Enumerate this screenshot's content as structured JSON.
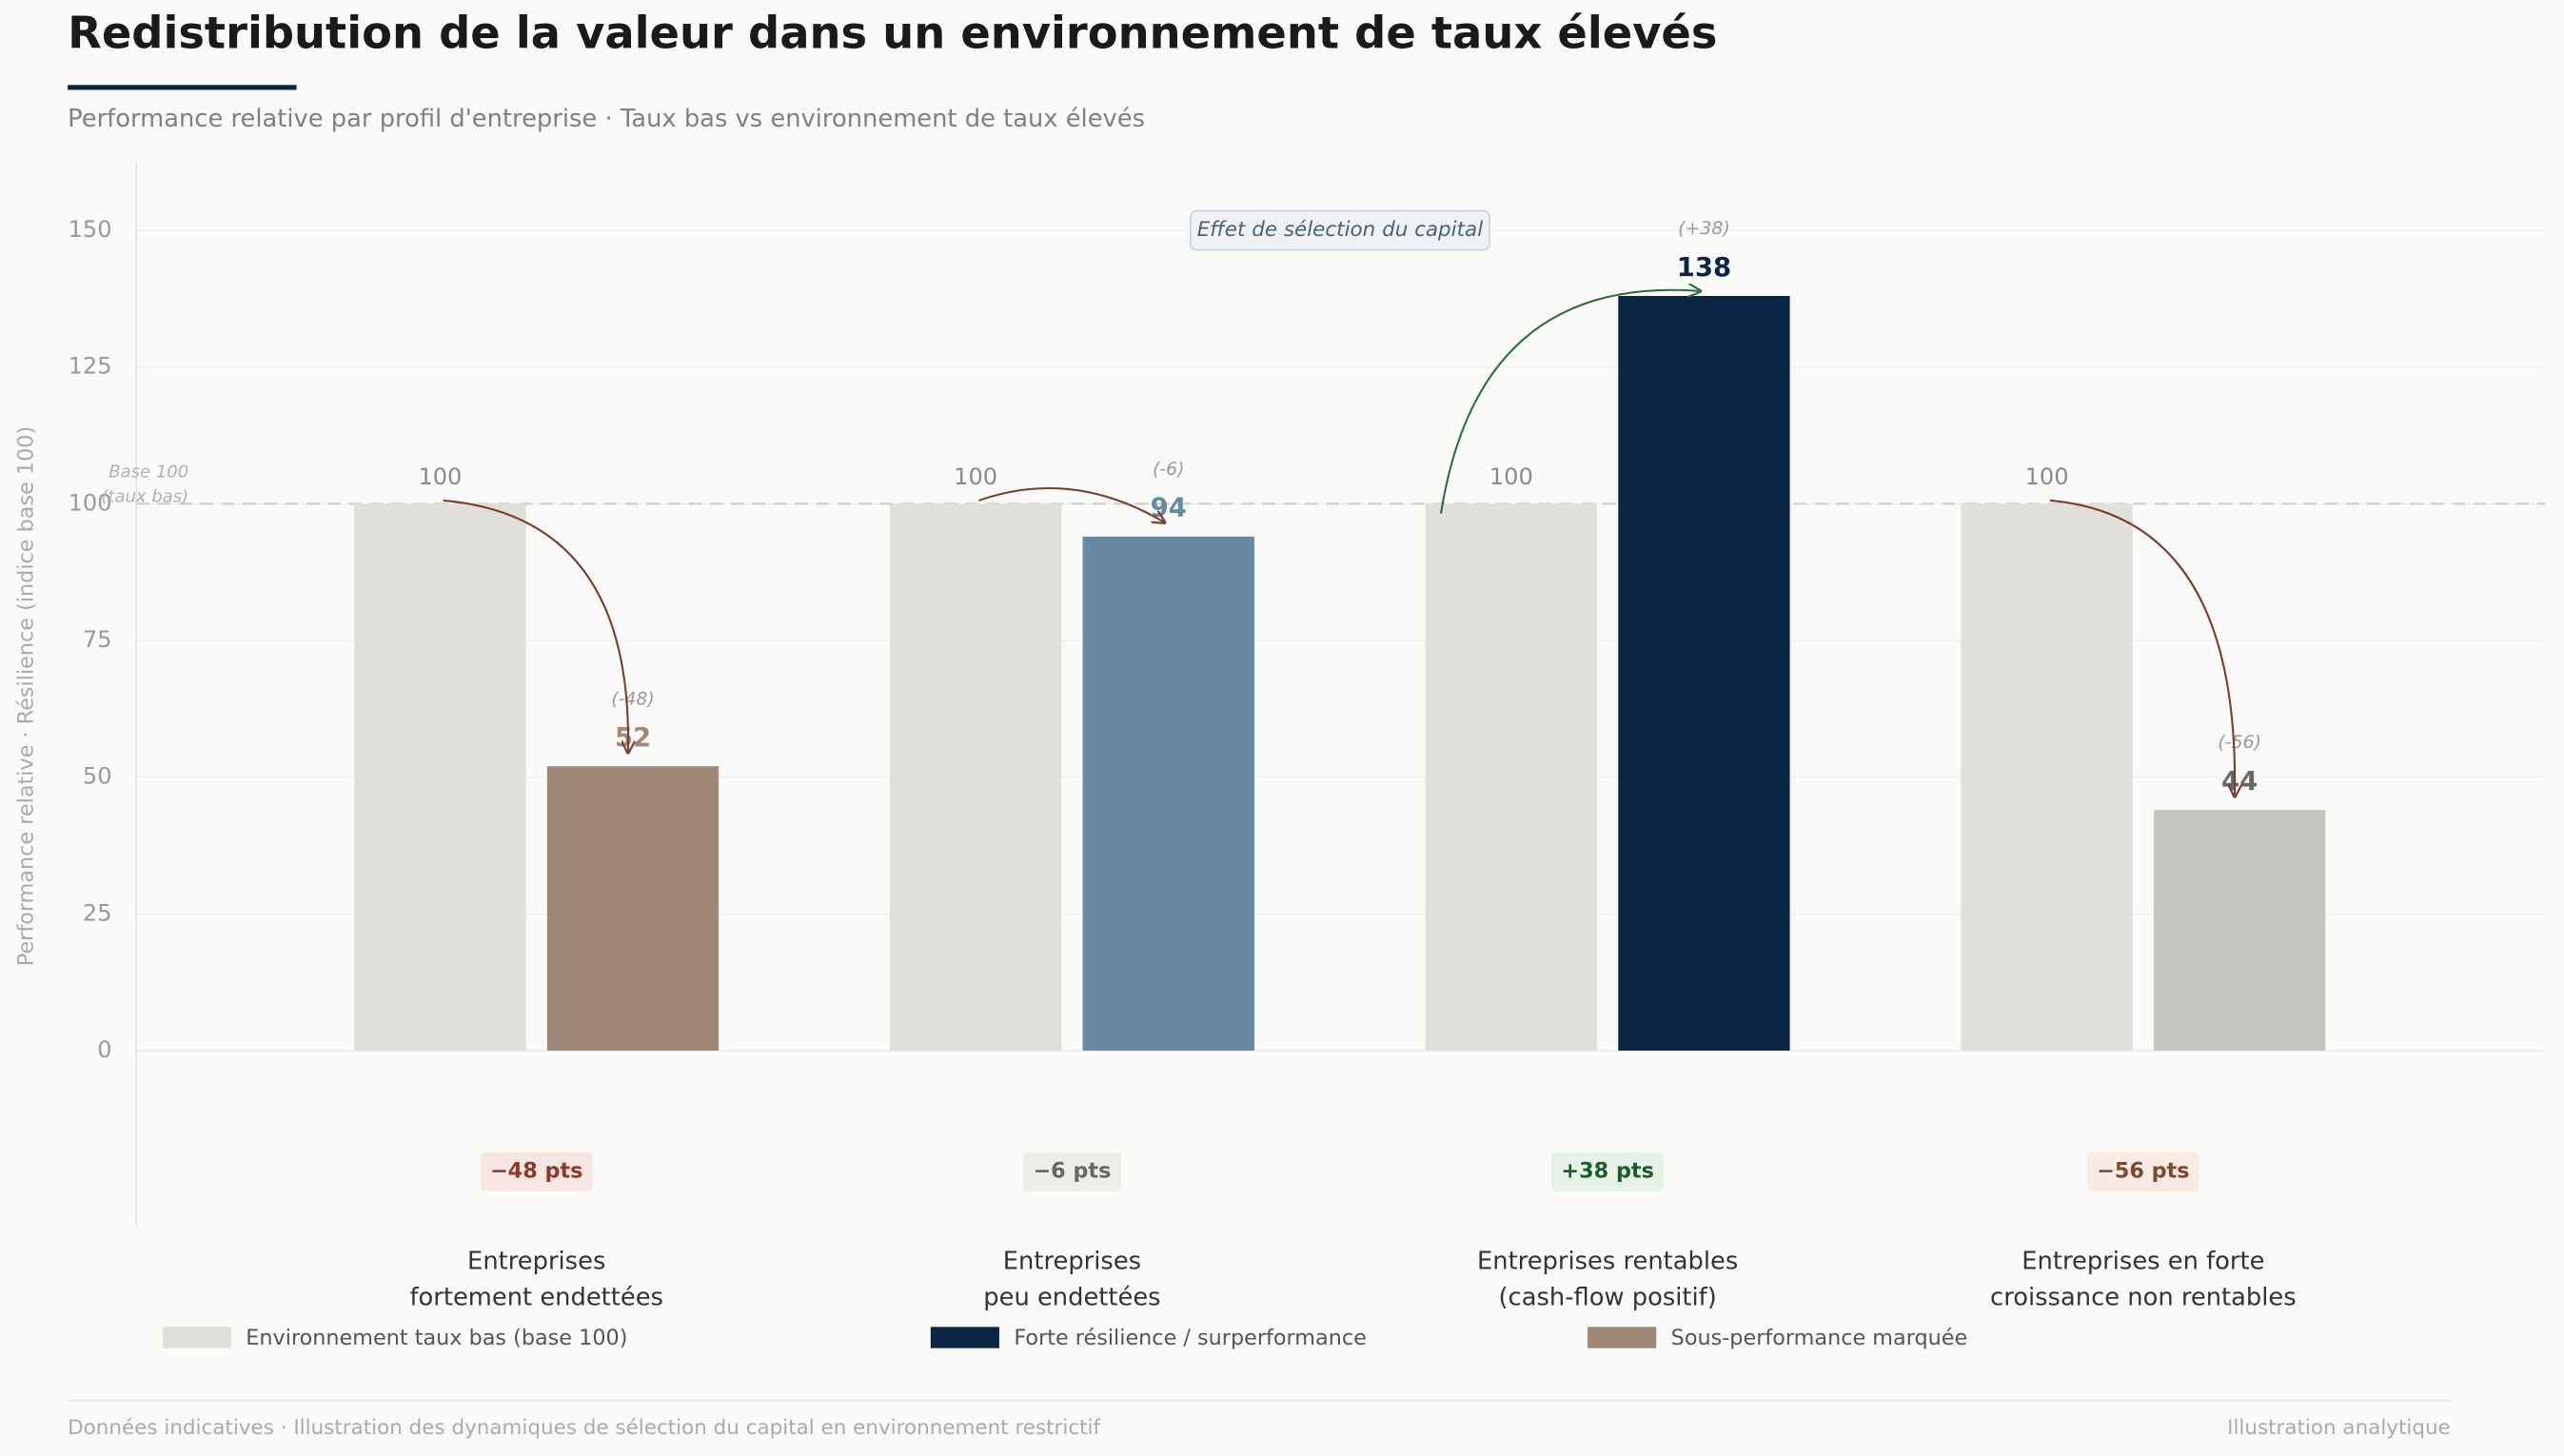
{
  "chart_data": {
    "type": "grouped_bar",
    "title": "Redistribution de la valeur dans un environnement de taux élevés",
    "subtitle": "Performance relative par profil d'entreprise · Taux bas vs environnement de taux élevés",
    "y_label": "Performance relative · Résilience (indice base 100)",
    "categories": [
      [
        "Entreprises",
        "fortement endettées"
      ],
      [
        "Entreprises",
        "peu endettées"
      ],
      [
        "Entreprises rentables",
        "(cash-flow positif)"
      ],
      [
        "Entreprises en forte",
        "croissance non rentables"
      ]
    ],
    "series": [
      {
        "name": "Environnement taux bas (base 100)",
        "color": "#e0dfda",
        "label_color": "#8a8a8a",
        "values": [
          100,
          100,
          100,
          100
        ]
      },
      {
        "colors": [
          "#a08878",
          "#6889a3",
          "#0b2545",
          "#c6c5c0"
        ],
        "label_colors": [
          "#a08878",
          "#6889a3",
          "#0b2545",
          "#666666"
        ],
        "values": [
          52,
          94,
          138,
          44
        ],
        "change_labels": [
          "(-48)",
          "(-6)",
          "(+38)",
          "(-56)"
        ]
      }
    ],
    "deltas": [
      {
        "label": "−48 pts",
        "color": "#8b3a2e",
        "background": "#f8e6e2",
        "arrow": "#7a3b2e"
      },
      {
        "label": "−6 pts",
        "color": "#666666",
        "background": "#eeece7",
        "arrow": "#7a3b2e"
      },
      {
        "label": "+38 pts",
        "color": "#1e5a2e",
        "background": "#e6f2e8",
        "arrow": "#2d6a3e"
      },
      {
        "label": "−56 pts",
        "color": "#7a4a30",
        "background": "#f7ebe4",
        "arrow": "#7a3b2e"
      }
    ],
    "reference_line": {
      "value": 100,
      "label": [
        "Base 100",
        "(taux bas)"
      ]
    },
    "annotation": "Effet de sélection du capital",
    "legend": [
      {
        "label": "Environnement taux bas (base 100)",
        "color": "#e0dfda"
      },
      {
        "label": "Forte résilience / surperformance",
        "color": "#0b2545"
      },
      {
        "label": "Sous-performance marquée",
        "color": "#a08878"
      }
    ],
    "ylim": [
      -32,
      162
    ],
    "yticks": [
      0,
      25,
      50,
      75,
      100,
      125,
      150
    ],
    "grid": true,
    "footer": {
      "left": "Données indicatives · Illustration des dynamiques de sélection du capital en environnement restrictif",
      "right": "Illustration analytique"
    }
  }
}
